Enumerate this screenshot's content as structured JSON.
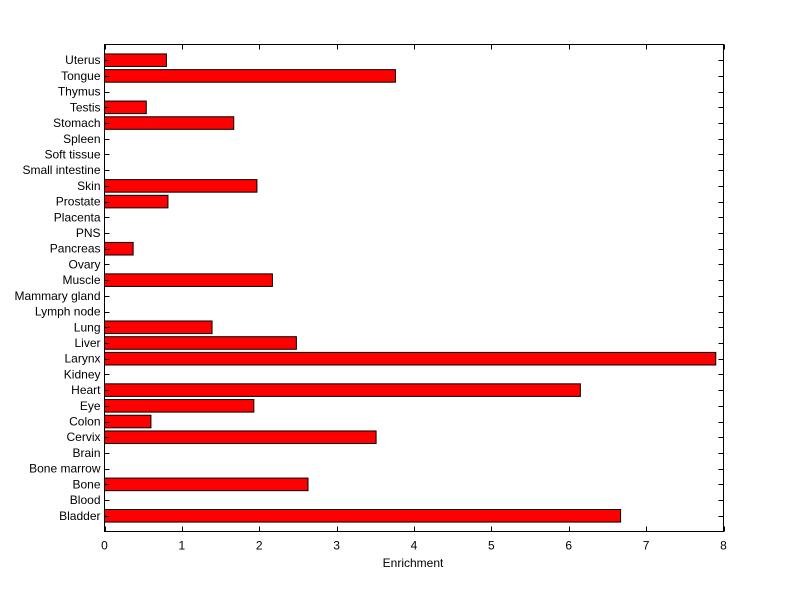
{
  "chart_data": {
    "type": "bar",
    "orientation": "horizontal",
    "title": "",
    "xlabel": "Enrichment",
    "ylabel": "",
    "xlim": [
      0,
      8
    ],
    "xticks": [
      0,
      1,
      2,
      3,
      4,
      5,
      6,
      7,
      8
    ],
    "grid": false,
    "bar_color": "#ff0000",
    "bar_edge_color": "#000000",
    "categories": [
      "Bladder",
      "Blood",
      "Bone",
      "Bone marrow",
      "Brain",
      "Cervix",
      "Colon",
      "Eye",
      "Heart",
      "Kidney",
      "Larynx",
      "Liver",
      "Lung",
      "Lymph node",
      "Mammary gland",
      "Muscle",
      "Ovary",
      "Pancreas",
      "PNS",
      "Placenta",
      "Prostate",
      "Skin",
      "Small intestine",
      "Soft tissue",
      "Spleen",
      "Stomach",
      "Testis",
      "Thymus",
      "Tongue",
      "Uterus"
    ],
    "values": [
      6.67,
      0,
      2.63,
      0,
      0,
      3.51,
      0.6,
      1.93,
      6.15,
      0,
      7.9,
      2.48,
      1.39,
      0,
      0,
      2.17,
      0,
      0.37,
      0,
      0,
      0.82,
      1.97,
      0,
      0,
      0,
      1.67,
      0.54,
      0,
      3.76,
      0.8
    ]
  }
}
